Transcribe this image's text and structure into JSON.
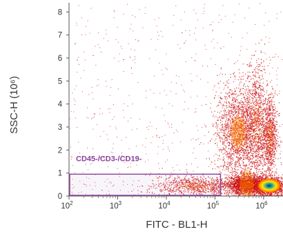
{
  "chart_data": {
    "type": "scatter",
    "title": "",
    "xlabel": "FITC - BL1-H",
    "ylabel": "SSC-H (10⁶)",
    "x_scale": "log10",
    "xlim": [
      100,
      2500000
    ],
    "ylim": [
      0,
      8.4
    ],
    "x_ticks": [
      {
        "value": 100,
        "base": "10",
        "exp": "2"
      },
      {
        "value": 1000,
        "base": "10",
        "exp": "3"
      },
      {
        "value": 10000,
        "base": "10",
        "exp": "4"
      },
      {
        "value": 100000,
        "base": "10",
        "exp": "5"
      },
      {
        "value": 1000000,
        "base": "10",
        "exp": "6"
      }
    ],
    "y_ticks": [
      {
        "value": 0,
        "label": "0"
      },
      {
        "value": 1,
        "label": "1"
      },
      {
        "value": 2,
        "label": "2"
      },
      {
        "value": 3,
        "label": "3"
      },
      {
        "value": 4,
        "label": "4"
      },
      {
        "value": 5,
        "label": "5"
      },
      {
        "value": 6,
        "label": "6"
      },
      {
        "value": 7,
        "label": "7"
      },
      {
        "value": 8,
        "label": "8"
      }
    ],
    "grid": false,
    "gate": {
      "label": "CD45-/CD3-/CD19-",
      "x_range": [
        100,
        130000
      ],
      "y_range": [
        0,
        0.95
      ],
      "color": "#8b3f9c"
    },
    "populations": [
      {
        "x_center": 40000,
        "y_center": 0.45,
        "x_spread_decades": 0.45,
        "y_spread": 0.22,
        "density": "medium"
      },
      {
        "x_center": 300000,
        "y_center": 2.8,
        "x_spread_decades": 0.22,
        "y_spread": 1.0,
        "density": "high"
      },
      {
        "x_center": 700000,
        "y_center": 3.2,
        "x_spread_decades": 0.12,
        "y_spread": 1.3,
        "density": "medium"
      },
      {
        "x_center": 1300000,
        "y_center": 2.6,
        "x_spread_decades": 0.08,
        "y_spread": 0.9,
        "density": "medium"
      },
      {
        "x_center": 1300000,
        "y_center": 0.45,
        "x_spread_decades": 0.18,
        "y_spread": 0.2,
        "density": "very high"
      },
      {
        "x_center": 450000,
        "y_center": 0.5,
        "x_spread_decades": 0.2,
        "y_spread": 0.2,
        "density": "high"
      }
    ],
    "colors": {
      "sparse": "#cc1010",
      "mid": "#e02b00",
      "dense": "#ff8c00",
      "peak": "#ffe600",
      "core": "#19a5a0",
      "core_dark": "#0a2a8c"
    }
  }
}
